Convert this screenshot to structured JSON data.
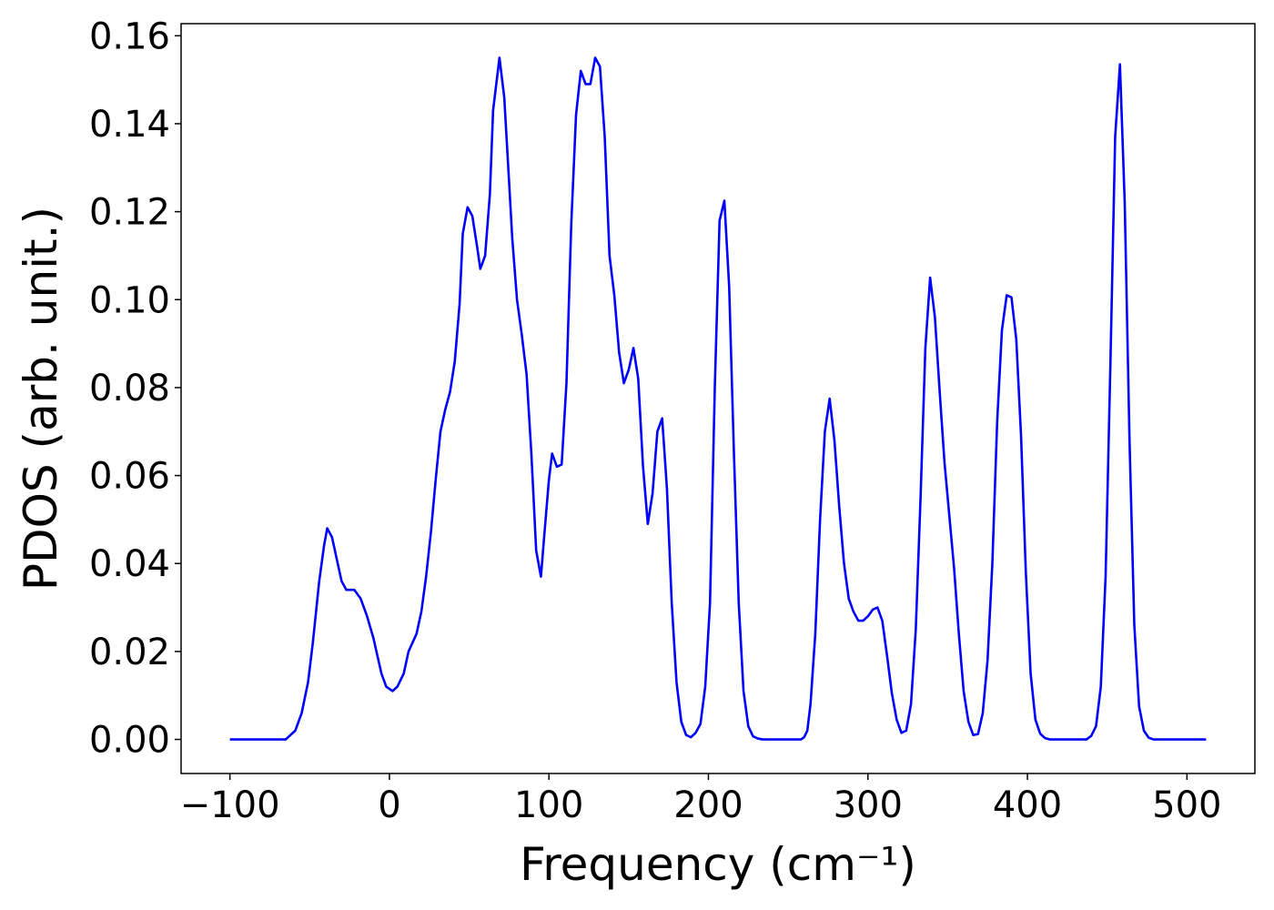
{
  "chart_data": {
    "type": "line",
    "xlabel": "Frequency (cm⁻¹)",
    "ylabel": "PDOS (arb. unit.)",
    "xlim": [
      -130.6,
      542.6
    ],
    "ylim": [
      -0.00775,
      0.16275
    ],
    "xticks": [
      {
        "value": -100,
        "label": "−100"
      },
      0,
      100,
      200,
      300,
      400,
      500
    ],
    "yticks": [
      {
        "value": 0,
        "label": "0.00"
      },
      {
        "value": 0.02,
        "label": "0.02"
      },
      {
        "value": 0.04,
        "label": "0.04"
      },
      {
        "value": 0.06,
        "label": "0.06"
      },
      {
        "value": 0.08,
        "label": "0.08"
      },
      {
        "value": 0.1,
        "label": "0.10"
      },
      {
        "value": 0.12,
        "label": "0.12"
      },
      {
        "value": 0.14,
        "label": "0.14"
      },
      {
        "value": 0.16,
        "label": "0.16"
      }
    ],
    "grid": false,
    "x": [
      -100,
      -65,
      -62,
      -59,
      -55,
      -51,
      -48,
      -44,
      -41,
      -39,
      -36,
      -33,
      -30,
      -27,
      -22,
      -18,
      -14,
      -10,
      -5,
      -2,
      2,
      5,
      9,
      12,
      17,
      20,
      23,
      26,
      29,
      32,
      35,
      38,
      41,
      44,
      46,
      49,
      52,
      55,
      57,
      60,
      63,
      65,
      69,
      72,
      75,
      77,
      80,
      83,
      86,
      89,
      92,
      95,
      97,
      100,
      102,
      105,
      108,
      111,
      114,
      117,
      120,
      123,
      126,
      129,
      132,
      135,
      138,
      141,
      144,
      147,
      150,
      153,
      156,
      159,
      162,
      165,
      168,
      171,
      174,
      177,
      180,
      183,
      186,
      189,
      192,
      195,
      198,
      201,
      204,
      207,
      210,
      213,
      216,
      219,
      222,
      225,
      228,
      231,
      234,
      258,
      260,
      262,
      264,
      267,
      270,
      273,
      276,
      279,
      282,
      285,
      288,
      291,
      294,
      297,
      300,
      303,
      306,
      309,
      312,
      315,
      318,
      321,
      324,
      327,
      330,
      333,
      336,
      339,
      342,
      345,
      348,
      351,
      354,
      357,
      360,
      363,
      366,
      369,
      372,
      375,
      378,
      381,
      384,
      387,
      390,
      393,
      396,
      399,
      402,
      405,
      408,
      411,
      414,
      437,
      440,
      443,
      446,
      449,
      452,
      455,
      458,
      461,
      464,
      467,
      470,
      473,
      476,
      479,
      512
    ],
    "series": [
      {
        "color": "#0000ff",
        "values": [
          0,
          0,
          0.001,
          0.002,
          0.006,
          0.013,
          0.022,
          0.036,
          0.044,
          0.048,
          0.046,
          0.041,
          0.036,
          0.034,
          0.034,
          0.032,
          0.028,
          0.023,
          0.015,
          0.012,
          0.011,
          0.012,
          0.015,
          0.02,
          0.024,
          0.029,
          0.037,
          0.047,
          0.059,
          0.07,
          0.075,
          0.079,
          0.086,
          0.099,
          0.115,
          0.121,
          0.119,
          0.112,
          0.107,
          0.11,
          0.124,
          0.143,
          0.155,
          0.146,
          0.127,
          0.114,
          0.1,
          0.092,
          0.083,
          0.065,
          0.043,
          0.037,
          0.046,
          0.059,
          0.065,
          0.062,
          0.0625,
          0.081,
          0.117,
          0.142,
          0.152,
          0.149,
          0.149,
          0.155,
          0.153,
          0.137,
          0.11,
          0.101,
          0.088,
          0.081,
          0.084,
          0.089,
          0.082,
          0.062,
          0.049,
          0.056,
          0.07,
          0.073,
          0.057,
          0.031,
          0.013,
          0.004,
          0.001,
          0.0005,
          0.0015,
          0.0035,
          0.012,
          0.031,
          0.08,
          0.118,
          0.1225,
          0.103,
          0.065,
          0.031,
          0.011,
          0.003,
          0.0007,
          0.0002,
          0,
          0,
          0.0005,
          0.002,
          0.008,
          0.024,
          0.05,
          0.07,
          0.0775,
          0.068,
          0.053,
          0.04,
          0.032,
          0.029,
          0.027,
          0.027,
          0.028,
          0.0295,
          0.03,
          0.027,
          0.019,
          0.0105,
          0.0045,
          0.0015,
          0.002,
          0.008,
          0.025,
          0.055,
          0.089,
          0.105,
          0.096,
          0.079,
          0.063,
          0.051,
          0.039,
          0.024,
          0.011,
          0.004,
          0.001,
          0.0012,
          0.006,
          0.018,
          0.04,
          0.072,
          0.093,
          0.101,
          0.1005,
          0.091,
          0.069,
          0.038,
          0.015,
          0.0045,
          0.0013,
          0.0003,
          0,
          0,
          0.0008,
          0.003,
          0.012,
          0.037,
          0.085,
          0.137,
          0.1535,
          0.122,
          0.068,
          0.026,
          0.0075,
          0.002,
          0.0004,
          0,
          0
        ]
      }
    ]
  }
}
